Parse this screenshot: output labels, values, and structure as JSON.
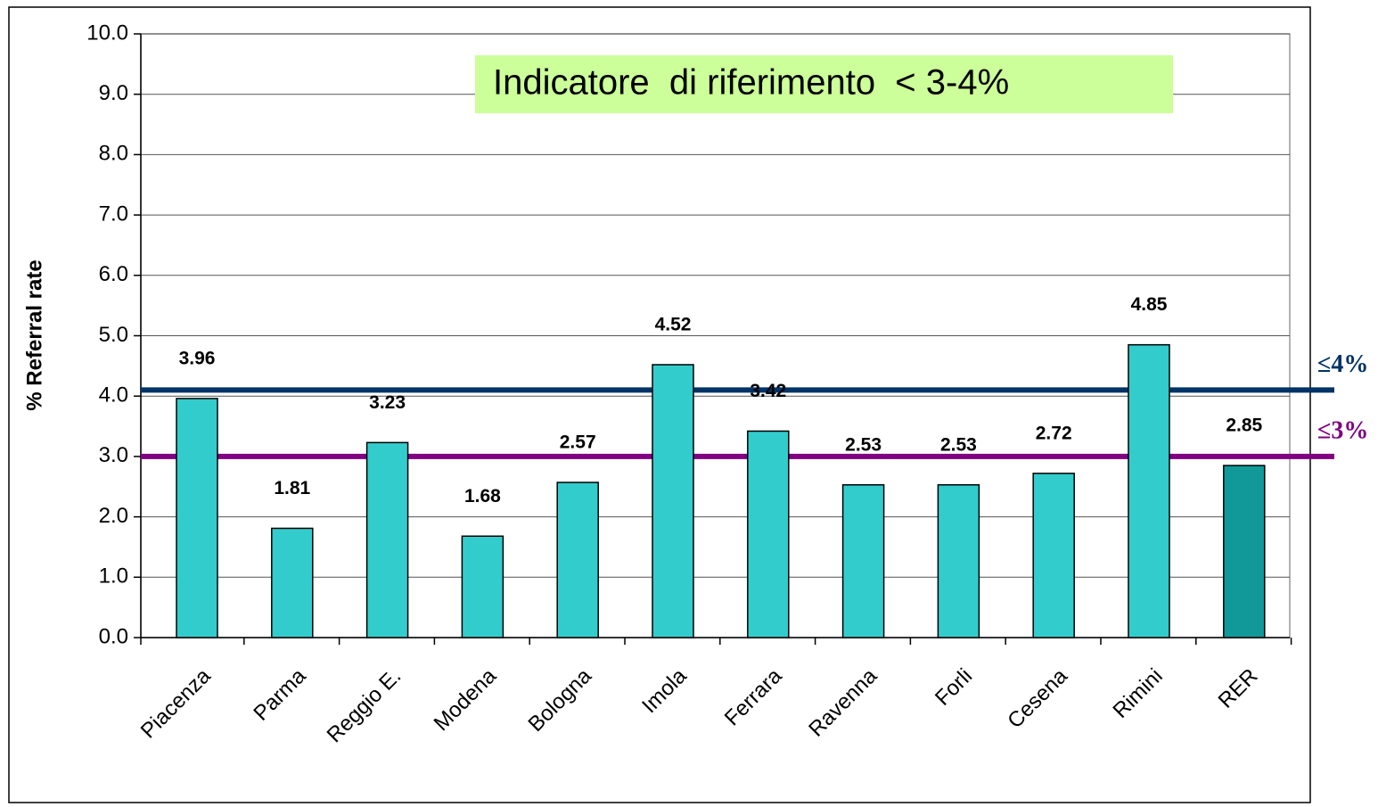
{
  "chart_data": {
    "type": "bar",
    "y_label": "% Referral rate",
    "annotation": "Indicatore  di riferimento  < 3-4%",
    "categories": [
      "Piacenza",
      "Parma",
      "Reggio E.",
      "Modena",
      "Bologna",
      "Imola",
      "Ferrara",
      "Ravenna",
      "Forli",
      "Cesena",
      "Rimini",
      "RER"
    ],
    "values": [
      3.96,
      1.81,
      3.23,
      1.68,
      2.57,
      4.52,
      3.42,
      2.53,
      2.53,
      2.72,
      4.85,
      2.85
    ],
    "colors": [
      "#33cccc",
      "#33cccc",
      "#33cccc",
      "#33cccc",
      "#33cccc",
      "#33cccc",
      "#33cccc",
      "#33cccc",
      "#33cccc",
      "#33cccc",
      "#33cccc",
      "#119999"
    ],
    "ylim": [
      0,
      10
    ],
    "yticks": [
      {
        "value": 0,
        "label": "0.0"
      },
      {
        "value": 1,
        "label": "1.0"
      },
      {
        "value": 2,
        "label": "2.0"
      },
      {
        "value": 3,
        "label": "3.0"
      },
      {
        "value": 4,
        "label": "4.0"
      },
      {
        "value": 5,
        "label": "5.0"
      },
      {
        "value": 6,
        "label": "6.0"
      },
      {
        "value": 7,
        "label": "7.0"
      },
      {
        "value": 8,
        "label": "8.0"
      },
      {
        "value": 9,
        "label": "9.0"
      },
      {
        "value": 10,
        "label": "10.0"
      }
    ],
    "grid": true,
    "reference_lines": [
      {
        "value": 4.1,
        "label": "≤4%",
        "color": "#003366"
      },
      {
        "value": 3,
        "label": "≤3%",
        "color": "#800080"
      }
    ]
  }
}
